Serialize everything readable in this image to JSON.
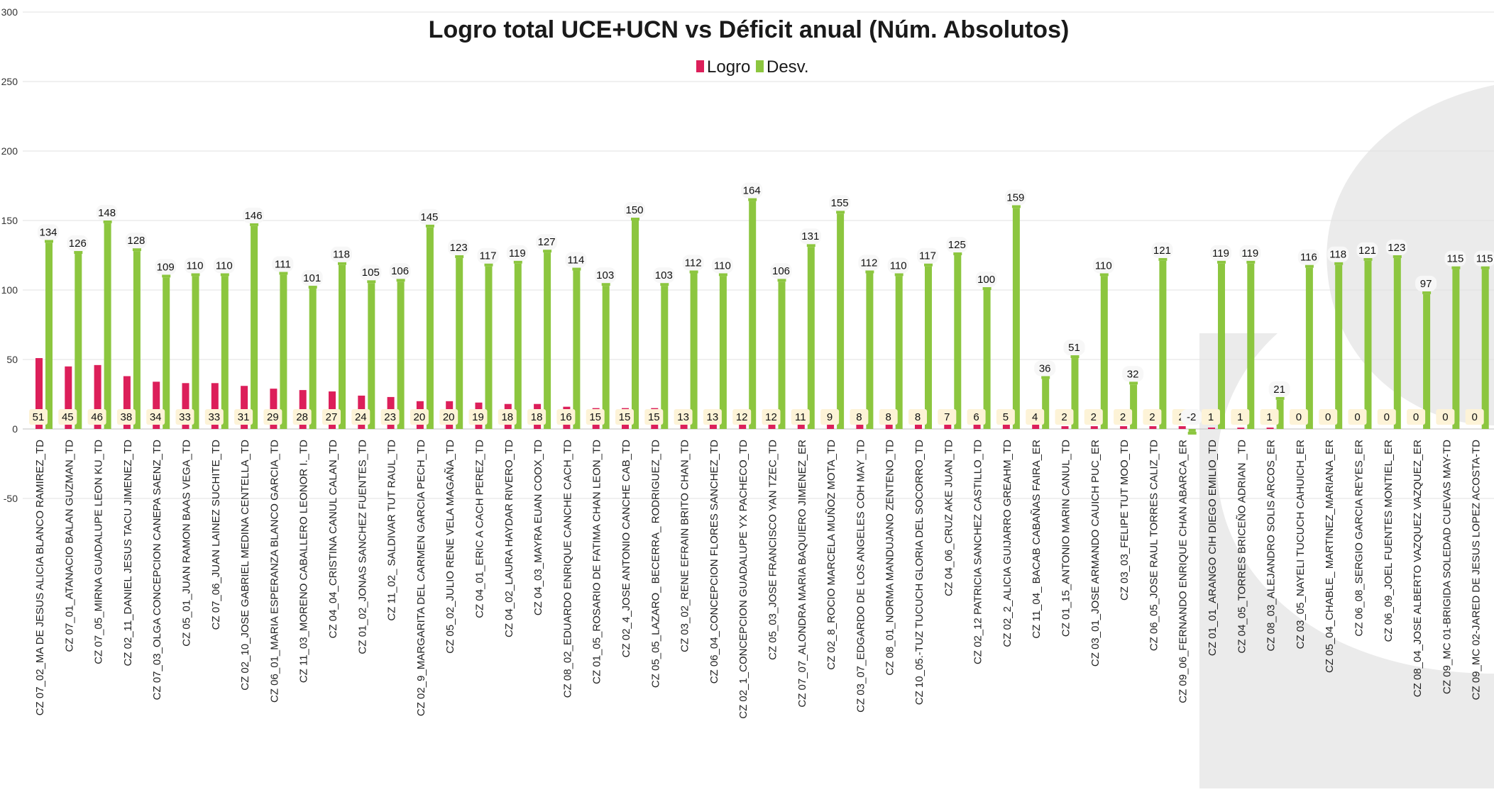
{
  "chart_data": {
    "type": "bar",
    "title": "Logro total UCE+UCN vs Déficit anual (Núm. Absolutos)",
    "xlabel": "",
    "ylabel": "",
    "ylim": [
      -50,
      300
    ],
    "yticks": [
      -50,
      0,
      50,
      100,
      150,
      200,
      250,
      300
    ],
    "grid": true,
    "legend_position": "top-center",
    "categories": [
      "CZ 07_02_MA DE JESUS ALICIA BLANCO RAMIREZ_TD",
      "CZ 07_01_ATANACIO BALAN GUZMAN_TD",
      "CZ 07_05_MIRNA GUADALUPE LEON KU_TD",
      "CZ 02_11_DANIEL JESUS TACU JIMENEZ_TD",
      "CZ 07_03_OLGA CONCEPCION CANEPA SAENZ_TD",
      "CZ 05_01_JUAN RAMON BAAS VEGA_TD",
      "CZ 07_06_JUAN LAINEZ SUCHITE_TD",
      "CZ 02_10_JOSE GABRIEL MEDINA CENTELLA_TD",
      "CZ 06_01_MARIA ESPERANZA BLANCO GARCIA_TD",
      "CZ 11_03_MORENO CABALLERO LEONOR I._TD",
      "CZ 04_04_CRISTINA CANUL CALAN_TD",
      "CZ 01_02_JONAS SANCHEZ FUENTES_TD",
      "CZ 11_02_ SALDIVAR TUT RAUL_TD",
      "CZ 02_9_MARGARITA DEL CARMEN GARCIA PECH_TD",
      "CZ 05_02_JULIO RENE VELA MAGAÑA_TD",
      "CZ 04_01_ERIC A CACH PEREZ_TD",
      "CZ 04_02_LAURA HAYDAR RIVERO_TD",
      "CZ 04_03_MAYRA EUAN COOX_TD",
      "CZ 08_02_EDUARDO ENRIQUE CANCHE CACH_TD",
      "CZ 01_05_ROSARIO DE FATIMA CHAN LEON_TD",
      "CZ 02_4_JOSE ANTONIO CANCHE CAB_TD",
      "CZ 05_05_LAZARO_ BECERRA_ RODRIGUEZ_TD",
      "CZ 03_02_RENE EFRAIN BRITO CHAN_TD",
      "CZ 06_04_CONCEPCION FLORES SANCHEZ_TD",
      "CZ 02_1_CONCEPCION GUADALUPE YX PACHECO_TD",
      "CZ 05_03_JOSE FRANCISCO YAN TZEC_TD",
      "CZ 07_07_ALONDRA MARIA BAQUIERO JIMENEZ_ER",
      "CZ 02_8_ROCIO MARCELA MUÑOZ MOTA_TD",
      "CZ 03_07_EDGARDO DE LOS ANGELES COH MAY_TD",
      "CZ 08_01_NORMA MANDUJANO ZENTENO_TD",
      "CZ 10_05.-TUZ TUCUCH GLORIA DEL SOCORRO_TD",
      "CZ 04_06_CRUZ AKE JUAN_TD",
      "CZ 02_12 PATRICIA SANCHEZ CASTILLO_TD",
      "CZ 02_2_ALICIA GUIJARRO GREAHM_TD",
      "CZ 11_04_ BACAB CABAÑAS FAIRA_ER",
      "CZ 01_15_ANTONIO MARIN CANUL_TD",
      "CZ 03_01_JOSE ARMANDO CAUICH PUC_ER",
      "CZ 03_03_FELIPE TUT MOO_TD",
      "CZ 06_05_JOSE RAUL TORRES CALIZ_TD",
      "CZ 09_06_FERNANDO ENRIQUE CHAN ABARCA_ER",
      "CZ 01_01_ARANGO CIH DIEGO EMILIO_TD",
      "CZ 04_05_TORRES BRICEÑO ADRIAN _TD",
      "CZ 08_03_ALEJANDRO SOLIS ARCOS_ER",
      "CZ 03_05_NAYELI TUCUCH CAHUICH_ER",
      "CZ 05_04_CHABLE_ MARTINEZ_MARIANA_ER",
      "CZ 06_08_SERGIO GARCIA REYES_ER",
      "CZ 06_09_JOEL FUENTES MONTIEL_ER",
      "CZ 08_04_JOSE ALBERTO VAZQUEZ VAZQUEZ_ER",
      "CZ 09_MC 01-BRIGIDA SOLEDAD CUEVAS MAY-TD",
      "CZ 09_MC 02-JARED DE JESUS LOPEZ ACOSTA-TD"
    ],
    "series": [
      {
        "name": "Logro",
        "color": "#dc1f5a",
        "values": [
          51,
          45,
          46,
          38,
          34,
          33,
          33,
          31,
          29,
          28,
          27,
          24,
          23,
          20,
          20,
          19,
          18,
          18,
          16,
          15,
          15,
          15,
          13,
          13,
          12,
          12,
          11,
          9,
          8,
          8,
          8,
          7,
          6,
          5,
          4,
          2,
          2,
          2,
          2,
          2,
          1,
          1,
          1,
          0,
          0,
          0,
          0,
          0,
          0,
          0
        ]
      },
      {
        "name": "Desv.",
        "color": "#8cc63f",
        "values": [
          134,
          126,
          148,
          128,
          109,
          110,
          110,
          146,
          111,
          101,
          118,
          105,
          106,
          145,
          123,
          117,
          119,
          127,
          114,
          103,
          150,
          103,
          112,
          110,
          164,
          106,
          131,
          155,
          112,
          110,
          117,
          125,
          100,
          159,
          36,
          51,
          110,
          32,
          121,
          -2,
          119,
          119,
          21,
          116,
          118,
          121,
          123,
          97,
          115,
          115
        ]
      }
    ]
  }
}
